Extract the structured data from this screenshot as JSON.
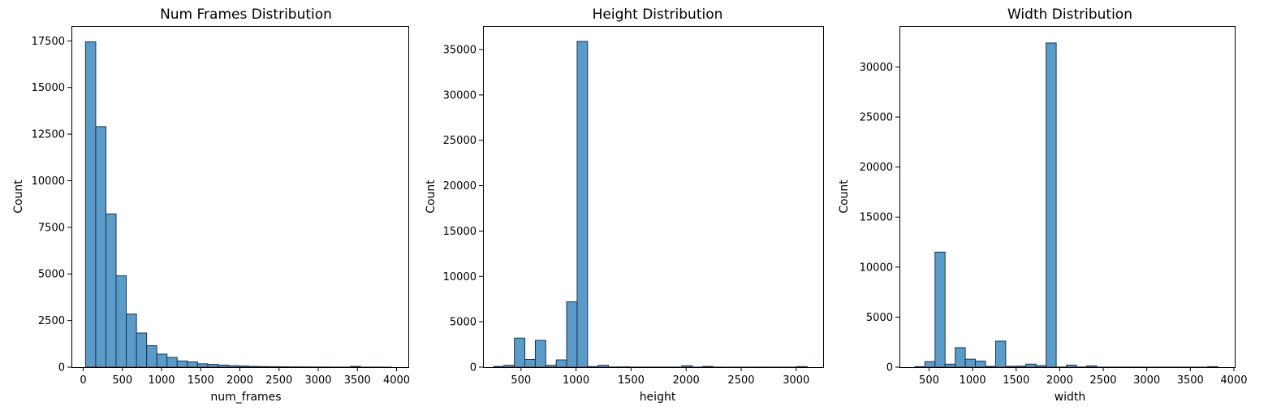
{
  "chart_data": [
    {
      "type": "bar",
      "title": "Num Frames Distribution",
      "xlabel": "num_frames",
      "ylabel": "Count",
      "xlim": [
        -150,
        4150
      ],
      "ylim": [
        0,
        18300
      ],
      "xticks": [
        0,
        500,
        1000,
        1500,
        2000,
        2500,
        3000,
        3500,
        4000
      ],
      "xtick_labels": [
        "0",
        "500",
        "1000",
        "1500",
        "2000",
        "2500",
        "3000",
        "3500",
        "4000"
      ],
      "yticks": [
        0,
        2500,
        5000,
        7500,
        10000,
        12500,
        15000,
        17500
      ],
      "ytick_labels": [
        "0",
        "2500",
        "5000",
        "7500",
        "10000",
        "12500",
        "15000",
        "17500"
      ],
      "bin_edges": [
        30,
        160,
        290,
        420,
        550,
        680,
        810,
        940,
        1070,
        1200,
        1330,
        1460,
        1590,
        1720,
        1850,
        1980,
        2110,
        2240,
        2370,
        2500,
        2630,
        2760,
        2890,
        3020,
        3150,
        3280,
        3410,
        3540,
        3670,
        3800,
        3930
      ],
      "counts": [
        17450,
        12900,
        8220,
        4900,
        2850,
        1830,
        1150,
        700,
        520,
        330,
        280,
        180,
        150,
        110,
        80,
        60,
        40,
        30,
        25,
        20,
        15,
        12,
        10,
        8,
        5,
        5,
        40,
        5,
        3,
        2
      ],
      "grid": false,
      "legend": "none"
    },
    {
      "type": "bar",
      "title": "Height Distribution",
      "xlabel": "height",
      "ylabel": "Count",
      "xlim": [
        155,
        3245
      ],
      "ylim": [
        0,
        37600
      ],
      "xticks": [
        500,
        1000,
        1500,
        2000,
        2500,
        3000
      ],
      "xtick_labels": [
        "500",
        "1000",
        "1500",
        "2000",
        "2500",
        "3000"
      ],
      "yticks": [
        0,
        5000,
        10000,
        15000,
        20000,
        25000,
        30000,
        35000
      ],
      "ytick_labels": [
        "0",
        "5000",
        "10000",
        "15000",
        "20000",
        "25000",
        "30000",
        "35000"
      ],
      "bin_edges": [
        250,
        345,
        440,
        535,
        630,
        725,
        820,
        915,
        1010,
        1105,
        1200,
        1295,
        1390,
        1485,
        1580,
        1675,
        1770,
        1865,
        1960,
        2055,
        2150,
        2245,
        2340,
        2435,
        2530,
        2625,
        2720,
        2815,
        2910,
        3005,
        3100
      ],
      "counts": [
        80,
        200,
        3200,
        850,
        2950,
        200,
        800,
        7200,
        35900,
        60,
        200,
        20,
        30,
        10,
        10,
        10,
        10,
        10,
        150,
        10,
        80,
        10,
        5,
        5,
        5,
        5,
        5,
        5,
        5,
        60
      ],
      "grid": false,
      "legend": "none"
    },
    {
      "type": "bar",
      "title": "Width Distribution",
      "xlabel": "width",
      "ylabel": "Count",
      "xlim": [
        160,
        4010
      ],
      "ylim": [
        0,
        34100
      ],
      "xticks": [
        500,
        1000,
        1500,
        2000,
        2500,
        3000,
        3500,
        4000
      ],
      "xtick_labels": [
        "500",
        "1000",
        "1500",
        "2000",
        "2500",
        "3000",
        "3500",
        "4000"
      ],
      "yticks": [
        0,
        5000,
        10000,
        15000,
        20000,
        25000,
        30000
      ],
      "ytick_labels": [
        "0",
        "5000",
        "10000",
        "15000",
        "20000",
        "25000",
        "30000"
      ],
      "bin_edges": [
        336,
        452,
        568,
        684,
        800,
        916,
        1032,
        1148,
        1264,
        1380,
        1496,
        1612,
        1728,
        1844,
        1960,
        2076,
        2192,
        2308,
        2424,
        2540,
        2656,
        2772,
        2888,
        3004,
        3120,
        3236,
        3352,
        3468,
        3584,
        3700,
        3816
      ],
      "counts": [
        50,
        550,
        11500,
        300,
        1950,
        800,
        600,
        80,
        2600,
        80,
        100,
        300,
        150,
        32400,
        20,
        200,
        20,
        120,
        10,
        10,
        10,
        10,
        10,
        5,
        5,
        5,
        5,
        5,
        5,
        50
      ],
      "grid": false,
      "legend": "none"
    }
  ]
}
